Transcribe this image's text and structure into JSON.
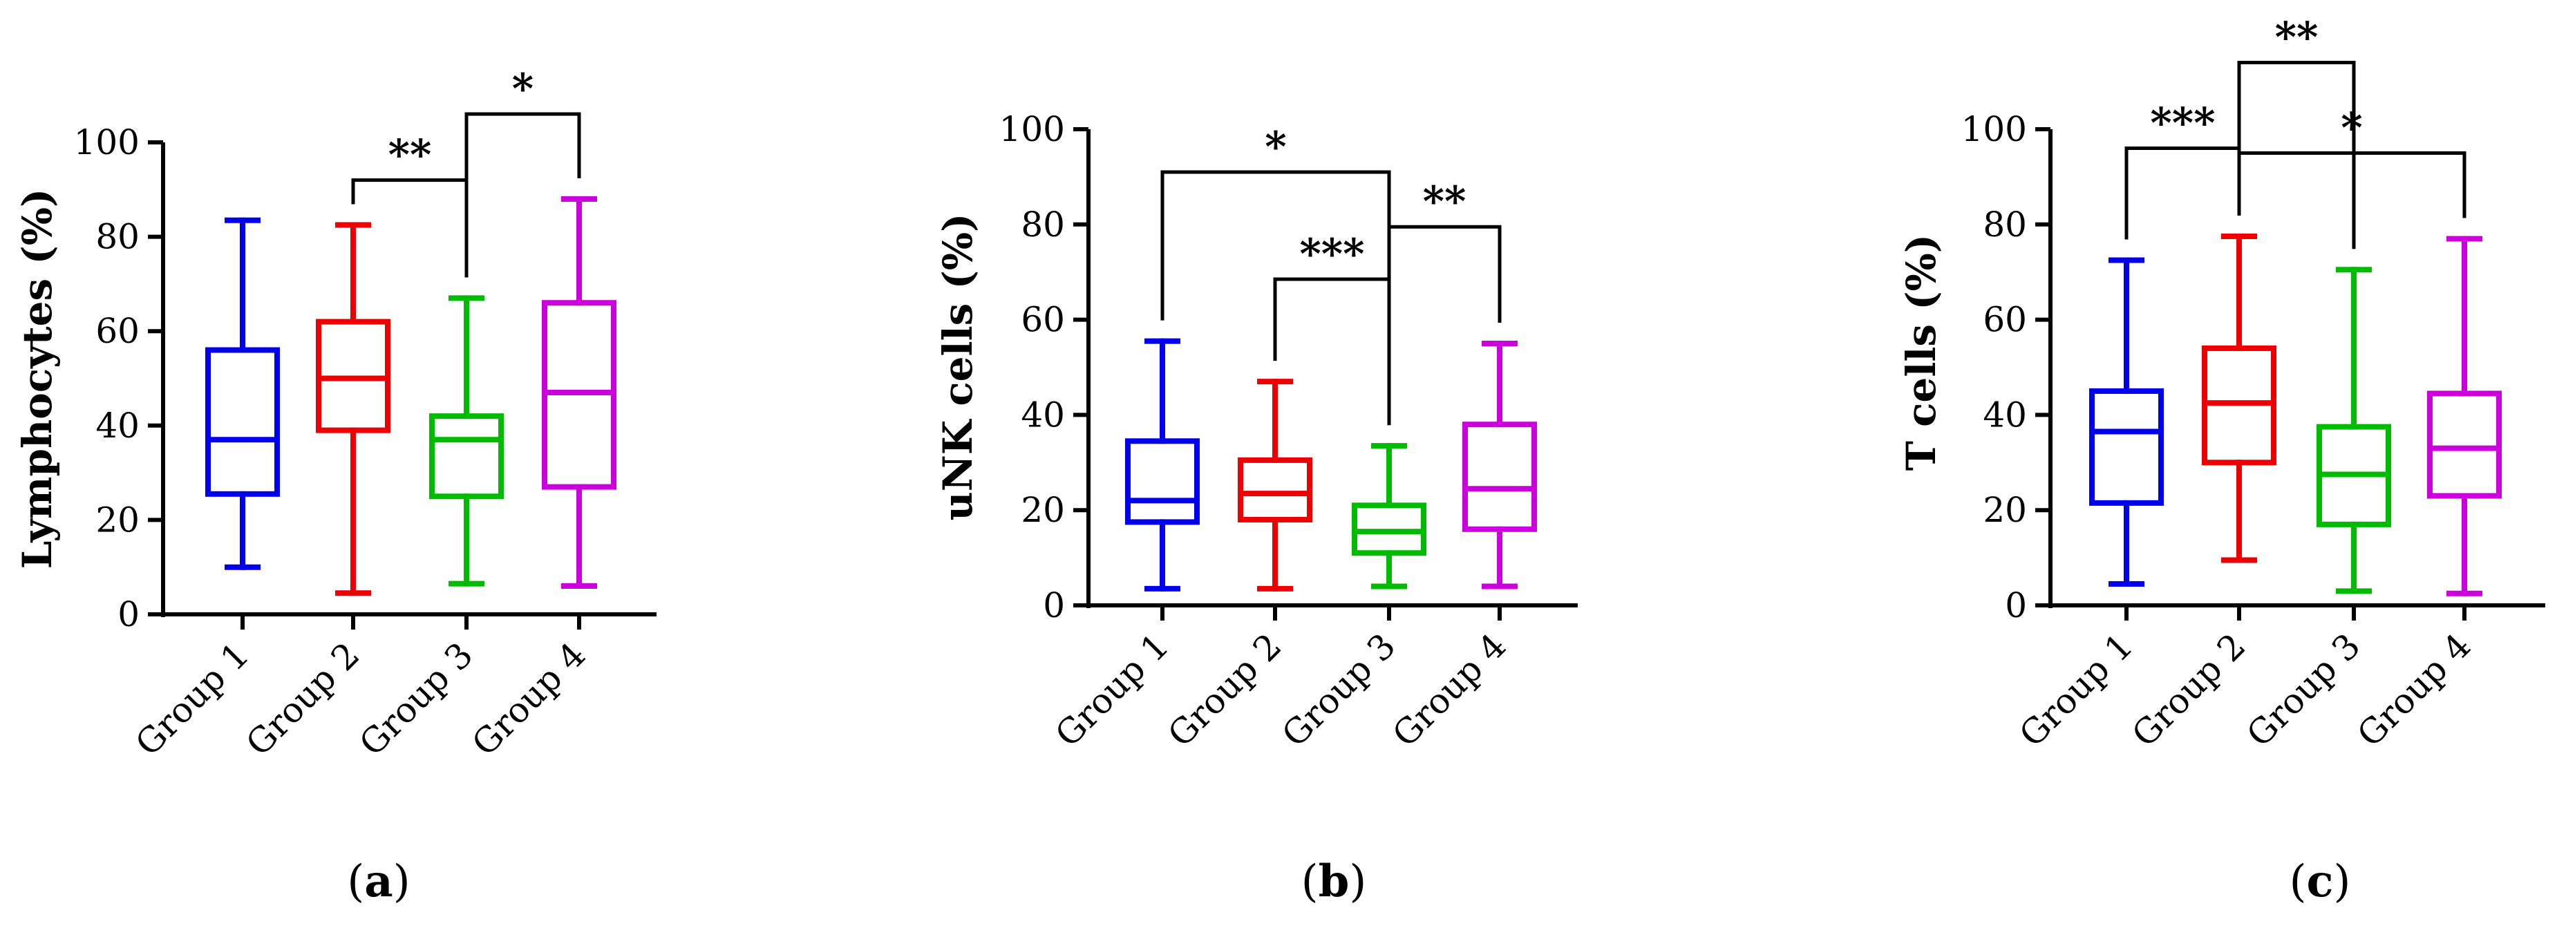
{
  "chart_data": [
    {
      "type": "box",
      "panel_label": "a",
      "ylabel": "Lymphocytes (%)",
      "ylim": [
        0,
        100
      ],
      "yticks": [
        0,
        20,
        40,
        60,
        80,
        100
      ],
      "categories": [
        "Group 1",
        "Group 2",
        "Group 3",
        "Group 4"
      ],
      "colors": [
        "#0000ee",
        "#ee0000",
        "#00bb00",
        "#cc00dd"
      ],
      "boxes": [
        {
          "min": 10,
          "q1": 25.5,
          "median": 37,
          "q3": 56,
          "max": 83.5
        },
        {
          "min": 4.5,
          "q1": 39,
          "median": 50,
          "q3": 62,
          "max": 82.5
        },
        {
          "min": 6.5,
          "q1": 25,
          "median": 37,
          "q3": 42,
          "max": 67
        },
        {
          "min": 6,
          "q1": 27,
          "median": 47,
          "q3": 66,
          "max": 88
        }
      ],
      "significance": [
        {
          "from": 1,
          "to": 2,
          "y": 92,
          "label": "**"
        },
        {
          "from": 2,
          "to": 3,
          "y": 106,
          "label": "*"
        }
      ]
    },
    {
      "type": "box",
      "panel_label": "b",
      "ylabel": "uNK cells (%)",
      "ylim": [
        0,
        100
      ],
      "yticks": [
        0,
        20,
        40,
        60,
        80,
        100
      ],
      "categories": [
        "Group 1",
        "Group 2",
        "Group 3",
        "Group 4"
      ],
      "colors": [
        "#0000ee",
        "#ee0000",
        "#00bb00",
        "#cc00dd"
      ],
      "boxes": [
        {
          "min": 3.5,
          "q1": 17.5,
          "median": 22,
          "q3": 34.5,
          "max": 55.5
        },
        {
          "min": 3.5,
          "q1": 18,
          "median": 23.5,
          "q3": 30.5,
          "max": 47
        },
        {
          "min": 4,
          "q1": 11,
          "median": 15.5,
          "q3": 21,
          "max": 33.5
        },
        {
          "min": 4,
          "q1": 16,
          "median": 24.5,
          "q3": 38,
          "max": 55
        }
      ],
      "significance": [
        {
          "from": 0,
          "to": 2,
          "y": 91,
          "label": "*"
        },
        {
          "from": 1,
          "to": 2,
          "y": 68.5,
          "label": "***"
        },
        {
          "from": 2,
          "to": 3,
          "y": 79.5,
          "label": "**"
        }
      ]
    },
    {
      "type": "box",
      "panel_label": "c",
      "ylabel": "T cells (%)",
      "ylim": [
        0,
        100
      ],
      "yticks": [
        0,
        20,
        40,
        60,
        80,
        100
      ],
      "categories": [
        "Group 1",
        "Group 2",
        "Group 3",
        "Group 4"
      ],
      "colors": [
        "#0000ee",
        "#ee0000",
        "#00bb00",
        "#cc00dd"
      ],
      "boxes": [
        {
          "min": 4.5,
          "q1": 21.5,
          "median": 36.5,
          "q3": 45,
          "max": 72.5
        },
        {
          "min": 9.5,
          "q1": 30,
          "median": 42.5,
          "q3": 54,
          "max": 77.5
        },
        {
          "min": 3,
          "q1": 17,
          "median": 27.5,
          "q3": 37.5,
          "max": 70.5
        },
        {
          "min": 2.5,
          "q1": 23,
          "median": 33,
          "q3": 44.5,
          "max": 77
        }
      ],
      "significance": [
        {
          "from": 0,
          "to": 1,
          "y": 96,
          "label": "***"
        },
        {
          "from": 1,
          "to": 2,
          "y": 114,
          "label": "**"
        },
        {
          "from": 1,
          "to": 3,
          "y": 95,
          "label": "*"
        }
      ]
    }
  ]
}
